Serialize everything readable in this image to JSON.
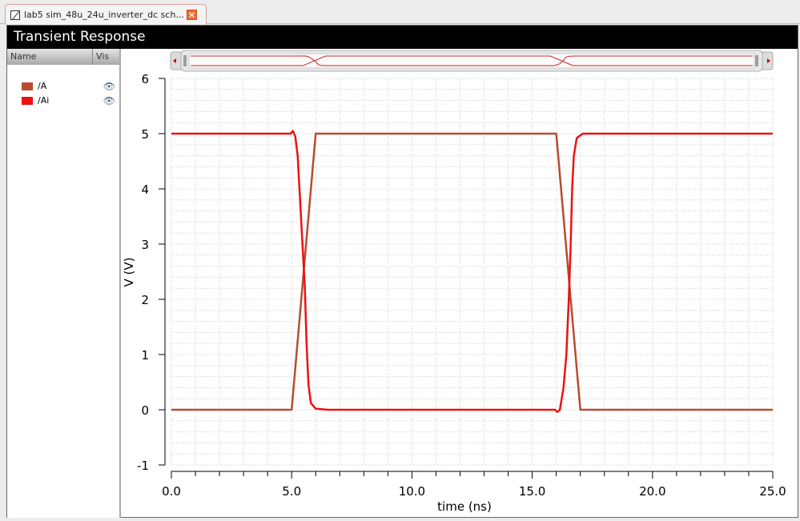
{
  "tab": {
    "label": "lab5 sim_48u_24u_inverter_dc sch...",
    "close": "×"
  },
  "window": {
    "title": "Transient Response"
  },
  "legend_panel": {
    "col_name": "Name",
    "col_vis": "Vis",
    "items": [
      {
        "label": "/A",
        "color": "#b84c30",
        "icon": "eye-icon"
      },
      {
        "label": "/Ai",
        "color": "#ee1111",
        "icon": "eye-icon"
      }
    ]
  },
  "chart_data": {
    "type": "line",
    "title": "Transient Response",
    "xlabel": "time (ns)",
    "ylabel": "V (V)",
    "xlim": [
      0,
      25
    ],
    "ylim": [
      -1,
      6
    ],
    "xticks": [
      "0.0",
      "5.0",
      "10.0",
      "15.0",
      "20.0",
      "25.0"
    ],
    "yticks": [
      "-1",
      "0",
      "1",
      "2",
      "3",
      "4",
      "5",
      "6"
    ],
    "grid": true,
    "legend": "left-panel",
    "series": [
      {
        "name": "/A",
        "color": "#b84c30",
        "points": [
          [
            0,
            0
          ],
          [
            5,
            0
          ],
          [
            6,
            5
          ],
          [
            16,
            5
          ],
          [
            17,
            0
          ],
          [
            25,
            0
          ]
        ]
      },
      {
        "name": "/Ai",
        "color": "#ee1111",
        "points": [
          [
            0,
            5
          ],
          [
            4.95,
            5
          ],
          [
            5.05,
            5.05
          ],
          [
            5.15,
            4.95
          ],
          [
            5.25,
            4.6
          ],
          [
            5.35,
            3.8
          ],
          [
            5.45,
            3.0
          ],
          [
            5.55,
            2.2
          ],
          [
            5.62,
            1.2
          ],
          [
            5.7,
            0.45
          ],
          [
            5.8,
            0.12
          ],
          [
            6.0,
            0.02
          ],
          [
            6.5,
            0
          ],
          [
            15.95,
            0
          ],
          [
            16.05,
            -0.04
          ],
          [
            16.15,
            0
          ],
          [
            16.3,
            0.4
          ],
          [
            16.42,
            1.0
          ],
          [
            16.52,
            2.0
          ],
          [
            16.6,
            3.0
          ],
          [
            16.66,
            4.0
          ],
          [
            16.73,
            4.6
          ],
          [
            16.85,
            4.92
          ],
          [
            17.1,
            5
          ],
          [
            25,
            5
          ]
        ]
      }
    ]
  }
}
